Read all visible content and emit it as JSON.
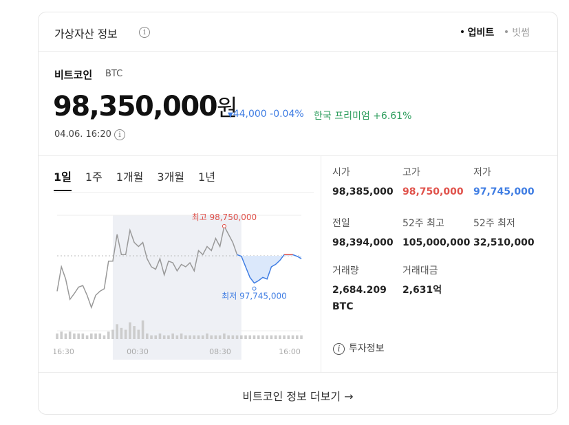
{
  "header": {
    "title": "가상자산 정보",
    "info_icon": "info-icon",
    "sources": [
      {
        "label": "업비트",
        "active": true
      },
      {
        "label": "빗썸",
        "active": false
      }
    ]
  },
  "coin": {
    "name": "비트코인",
    "ticker": "BTC",
    "price": "98,350,000",
    "unit": "원",
    "change": "44,000 -0.04%",
    "change_direction": "down",
    "premium": "한국 프리미엄 +6.61%",
    "timestamp": "04.06. 16:20"
  },
  "periods": [
    "1일",
    "1주",
    "1개월",
    "3개월",
    "1년"
  ],
  "chart_data": {
    "type": "line",
    "x_ticks": [
      "16:30",
      "00:30",
      "08:30",
      "16:00"
    ],
    "high_label": "최고 98,750,000",
    "low_label": "최저 97,745,000",
    "high": 98750000,
    "low": 97745000,
    "reference": 98385000,
    "colors": {
      "past": "#999999",
      "recent": "#3f7de3",
      "high": "#e0524b",
      "volume": "#cccccc"
    },
    "series": [
      {
        "values": [
          97950000,
          98250000,
          98100000,
          97850000,
          97920000,
          98000000,
          98020000,
          97900000,
          97750000,
          97900000,
          97950000,
          97980000,
          98320000,
          98320000,
          98650000,
          98400000,
          98400000,
          98700000,
          98550000,
          98500000,
          98550000,
          98350000,
          98250000,
          98220000,
          98350000,
          98150000,
          98320000,
          98300000,
          98200000,
          98280000,
          98250000,
          98300000,
          98200000,
          98450000,
          98400000,
          98500000,
          98450000,
          98600000,
          98500000,
          98750000,
          98650000,
          98550000,
          98400000,
          98380000,
          98250000,
          98120000,
          98050000,
          98080000,
          98120000,
          98100000,
          98250000,
          98280000,
          98330000,
          98400000,
          98400000,
          98400000,
          98380000,
          98350000
        ]
      }
    ],
    "volume": [
      3,
      4,
      3,
      4,
      3,
      3,
      3,
      2,
      3,
      3,
      3,
      2,
      4,
      5,
      8,
      6,
      5,
      9,
      7,
      5,
      10,
      3,
      2,
      2,
      3,
      2,
      2,
      3,
      2,
      3,
      2,
      2,
      2,
      2,
      2,
      3,
      2,
      2,
      2,
      3,
      2,
      2,
      2,
      2,
      2,
      2,
      2,
      2,
      2,
      2,
      2,
      2,
      2,
      2,
      2,
      2,
      2,
      2
    ]
  },
  "stats": [
    {
      "label": "시가",
      "value": "98,385,000",
      "tone": "normal"
    },
    {
      "label": "고가",
      "value": "98,750,000",
      "tone": "up"
    },
    {
      "label": "저가",
      "value": "97,745,000",
      "tone": "down"
    },
    {
      "label": "전일",
      "value": "98,394,000",
      "tone": "normal"
    },
    {
      "label": "52주 최고",
      "value": "105,000,000",
      "tone": "normal"
    },
    {
      "label": "52주 최저",
      "value": "32,510,000",
      "tone": "normal"
    },
    {
      "label": "거래량",
      "value": "2,684.209 BTC",
      "tone": "normal"
    },
    {
      "label": "거래대금",
      "value": "2,631억",
      "tone": "normal"
    }
  ],
  "invest_info": "투자정보",
  "more_link": "비트코인 정보 더보기",
  "more_arrow": "→"
}
